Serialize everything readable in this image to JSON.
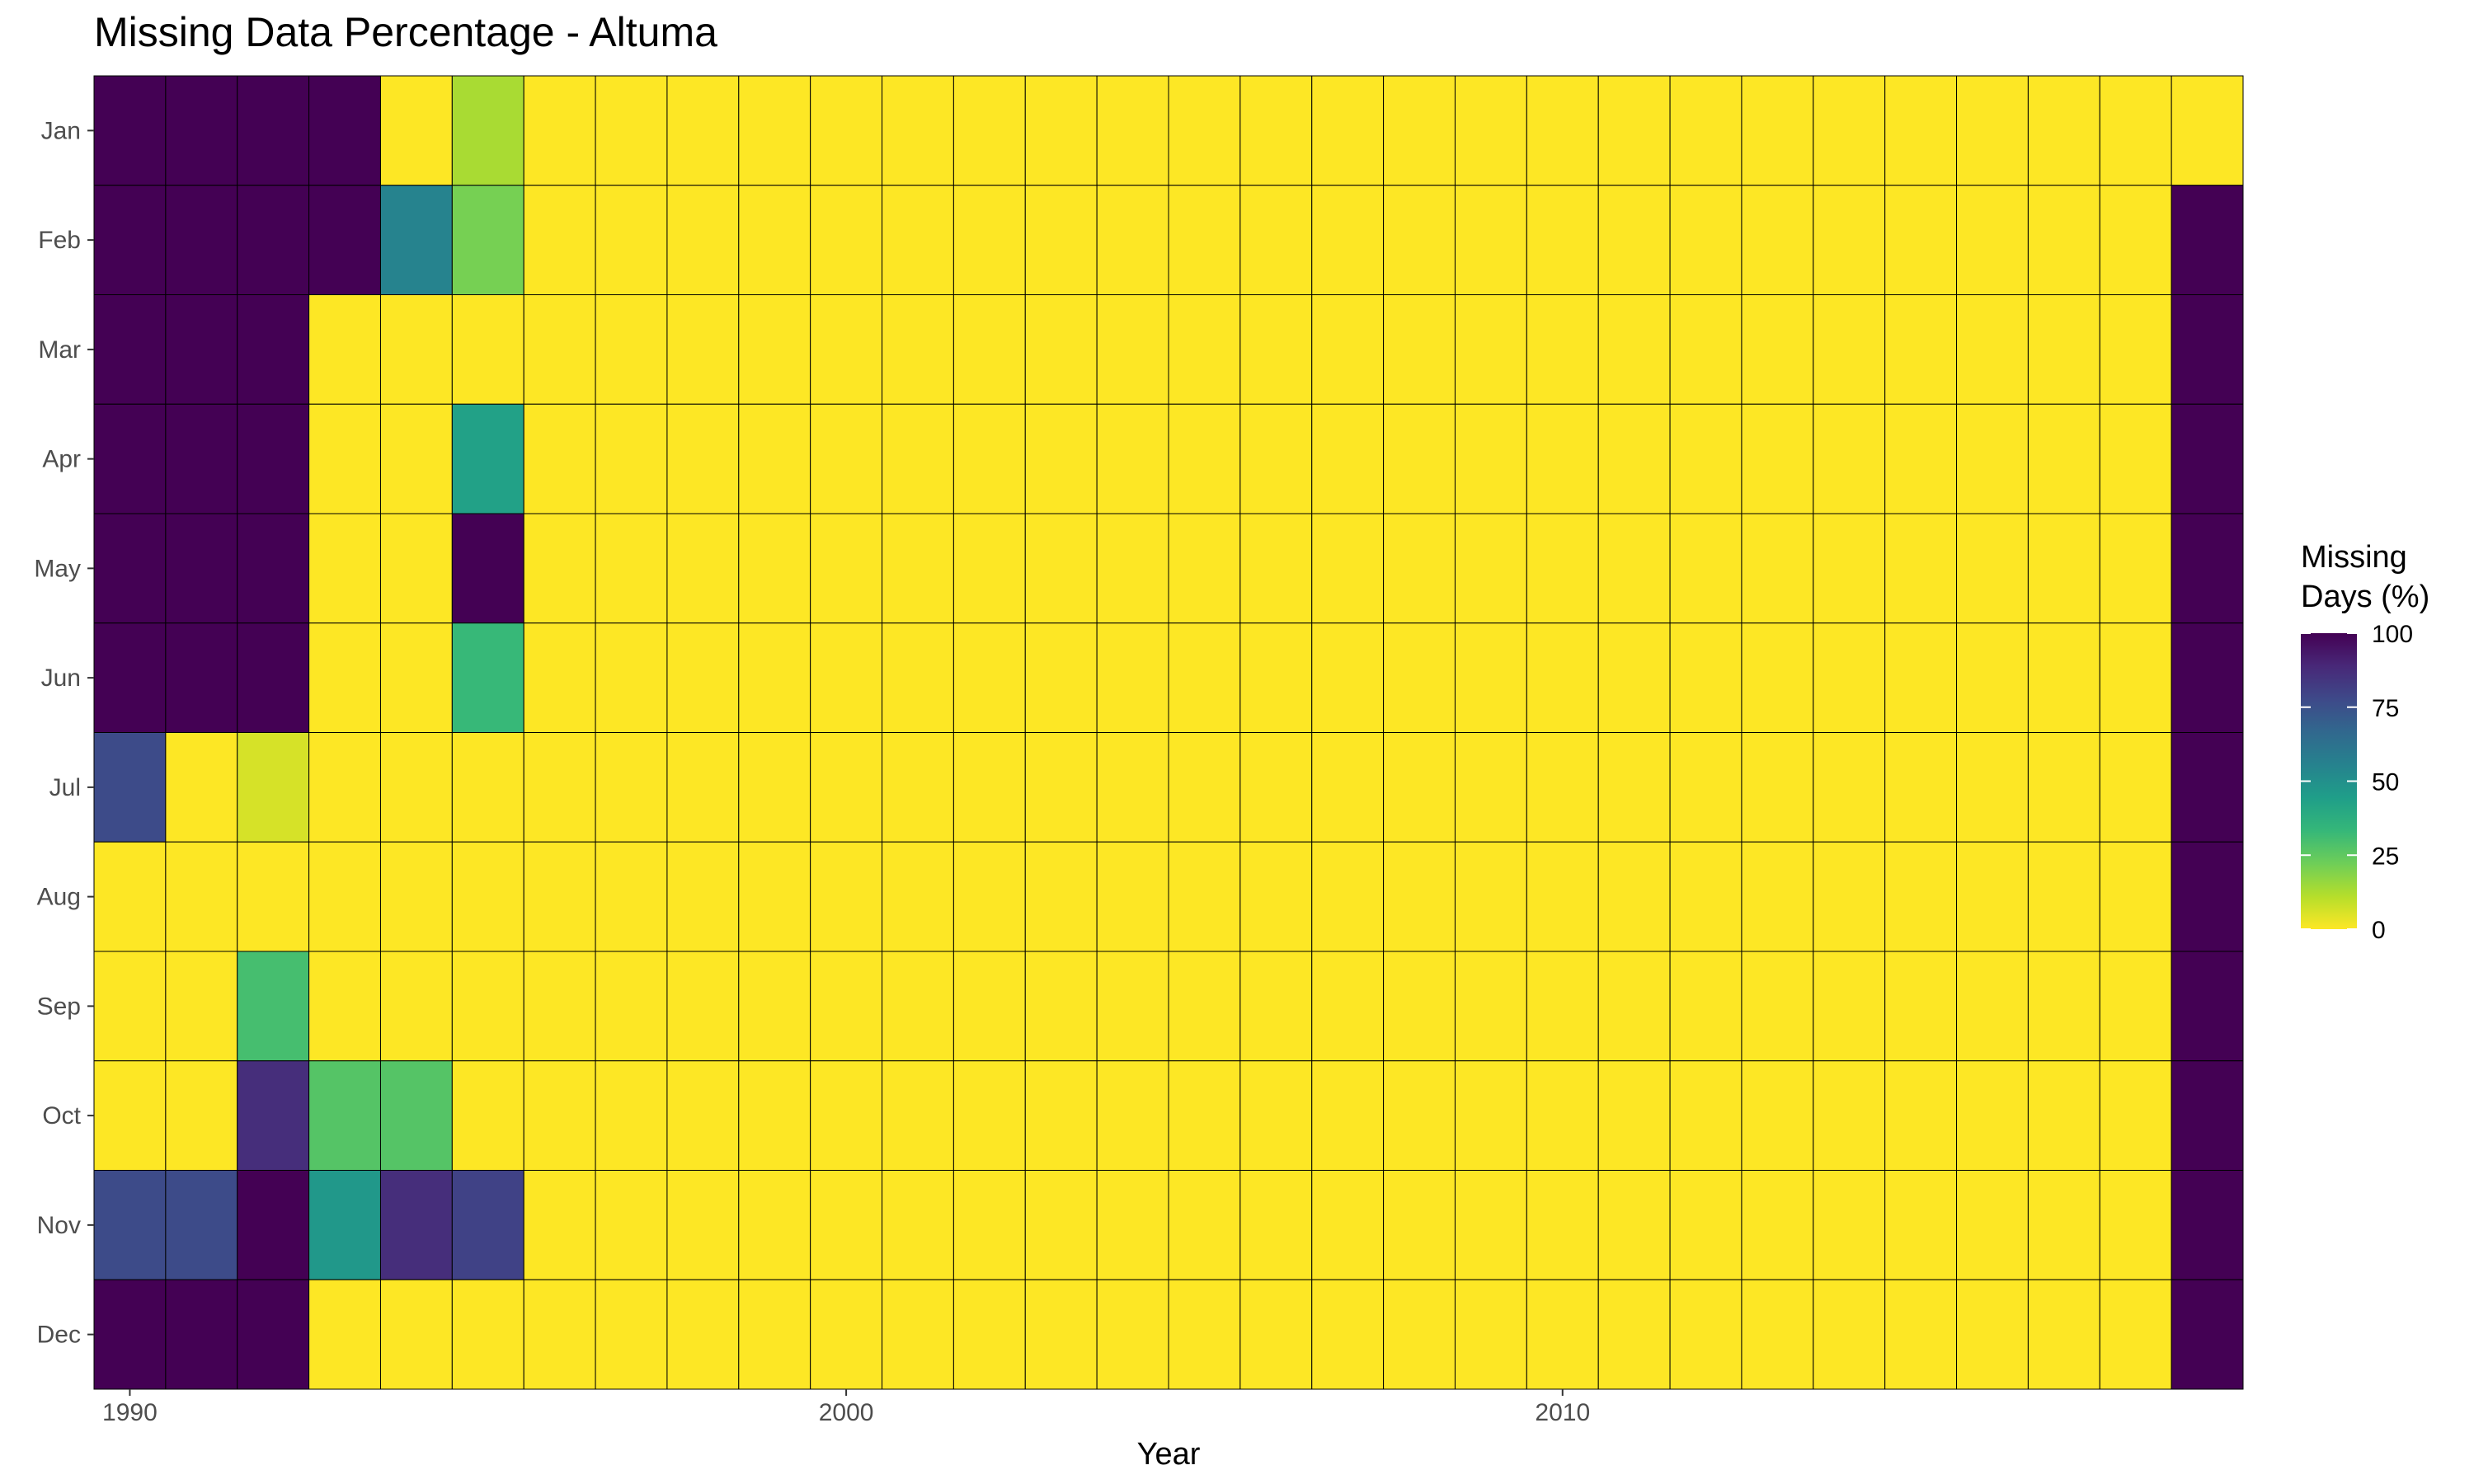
{
  "chart_data": {
    "type": "heatmap",
    "title": "Missing Data Percentage - Altuma",
    "xlabel": "Year",
    "ylabel": "",
    "x": [
      1990,
      1991,
      1992,
      1993,
      1994,
      1995,
      1996,
      1997,
      1998,
      1999,
      2000,
      2001,
      2002,
      2003,
      2004,
      2005,
      2006,
      2007,
      2008,
      2009,
      2010,
      2011,
      2012,
      2013,
      2014,
      2015,
      2016,
      2017,
      2018,
      2019
    ],
    "y": [
      "Jan",
      "Feb",
      "Mar",
      "Apr",
      "May",
      "Jun",
      "Jul",
      "Aug",
      "Sep",
      "Oct",
      "Nov",
      "Dec"
    ],
    "x_ticks": [
      1990,
      2000,
      2010
    ],
    "values": [
      [
        100,
        100,
        100,
        100,
        0,
        13,
        0,
        0,
        0,
        0,
        0,
        0,
        0,
        0,
        0,
        0,
        0,
        0,
        0,
        0,
        0,
        0,
        0,
        0,
        0,
        0,
        0,
        0,
        0,
        0
      ],
      [
        100,
        100,
        100,
        100,
        55,
        21,
        0,
        0,
        0,
        0,
        0,
        0,
        0,
        0,
        0,
        0,
        0,
        0,
        0,
        0,
        0,
        0,
        0,
        0,
        0,
        0,
        0,
        0,
        0,
        100
      ],
      [
        100,
        100,
        100,
        0,
        0,
        0,
        0,
        0,
        0,
        0,
        0,
        0,
        0,
        0,
        0,
        0,
        0,
        0,
        0,
        0,
        0,
        0,
        0,
        0,
        0,
        0,
        0,
        0,
        0,
        100
      ],
      [
        100,
        100,
        100,
        0,
        0,
        43,
        0,
        0,
        0,
        0,
        0,
        0,
        0,
        0,
        0,
        0,
        0,
        0,
        0,
        0,
        0,
        0,
        0,
        0,
        0,
        0,
        0,
        0,
        0,
        100
      ],
      [
        100,
        100,
        100,
        0,
        0,
        100,
        0,
        0,
        0,
        0,
        0,
        0,
        0,
        0,
        0,
        0,
        0,
        0,
        0,
        0,
        0,
        0,
        0,
        0,
        0,
        0,
        0,
        0,
        0,
        100
      ],
      [
        100,
        100,
        100,
        0,
        0,
        33,
        0,
        0,
        0,
        0,
        0,
        0,
        0,
        0,
        0,
        0,
        0,
        0,
        0,
        0,
        0,
        0,
        0,
        0,
        0,
        0,
        0,
        0,
        0,
        100
      ],
      [
        77,
        0,
        6,
        0,
        0,
        0,
        0,
        0,
        0,
        0,
        0,
        0,
        0,
        0,
        0,
        0,
        0,
        0,
        0,
        0,
        0,
        0,
        0,
        0,
        0,
        0,
        0,
        0,
        0,
        100
      ],
      [
        0,
        0,
        0,
        0,
        0,
        0,
        0,
        0,
        0,
        0,
        0,
        0,
        0,
        0,
        0,
        0,
        0,
        0,
        0,
        0,
        0,
        0,
        0,
        0,
        0,
        0,
        0,
        0,
        0,
        100
      ],
      [
        0,
        0,
        30,
        0,
        0,
        0,
        0,
        0,
        0,
        0,
        0,
        0,
        0,
        0,
        0,
        0,
        0,
        0,
        0,
        0,
        0,
        0,
        0,
        0,
        0,
        0,
        0,
        0,
        0,
        100
      ],
      [
        0,
        0,
        87,
        27,
        27,
        0,
        0,
        0,
        0,
        0,
        0,
        0,
        0,
        0,
        0,
        0,
        0,
        0,
        0,
        0,
        0,
        0,
        0,
        0,
        0,
        0,
        0,
        0,
        0,
        100
      ],
      [
        77,
        77,
        100,
        47,
        87,
        80,
        0,
        0,
        0,
        0,
        0,
        0,
        0,
        0,
        0,
        0,
        0,
        0,
        0,
        0,
        0,
        0,
        0,
        0,
        0,
        0,
        0,
        0,
        0,
        100
      ],
      [
        100,
        100,
        100,
        0,
        0,
        0,
        0,
        0,
        0,
        0,
        0,
        0,
        0,
        0,
        0,
        0,
        0,
        0,
        0,
        0,
        0,
        0,
        0,
        0,
        0,
        0,
        0,
        0,
        0,
        100
      ]
    ],
    "color_scale": "viridis (reversed)",
    "color_range": [
      0,
      100
    ],
    "colors": [
      "#fde725",
      "#b5de2b",
      "#6ece58",
      "#35b779",
      "#1f9e89",
      "#26828e",
      "#31688e",
      "#3e4989",
      "#482878",
      "#440154"
    ],
    "legend": {
      "title_lines": [
        "Missing",
        "Days (%)"
      ],
      "ticks": [
        100,
        75,
        50,
        25,
        0
      ],
      "placement": "right"
    },
    "grid": false
  }
}
